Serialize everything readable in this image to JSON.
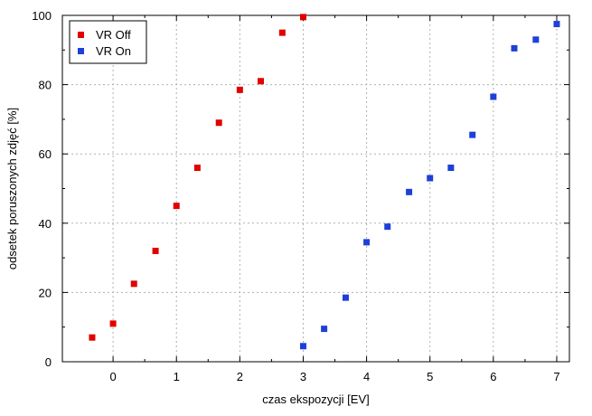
{
  "chart_data": {
    "type": "scatter",
    "title": "",
    "xlabel": "czas ekspozycji [EV]",
    "ylabel": "odsetek poruszonych zdjęć [%]",
    "xlim": [
      -0.8,
      7.2
    ],
    "ylim": [
      0,
      100
    ],
    "x_ticks": [
      0,
      1,
      2,
      3,
      4,
      5,
      6,
      7
    ],
    "y_ticks": [
      0,
      20,
      40,
      60,
      80,
      100
    ],
    "x_tick_labels": [
      "0",
      "1",
      "2",
      "3",
      "4",
      "5",
      "6",
      "7"
    ],
    "y_tick_labels": [
      "0",
      "20",
      "40",
      "60",
      "80",
      "100"
    ],
    "grid": true,
    "legend_position": "top-left",
    "series": [
      {
        "name": "VR Off",
        "color": "#e00000",
        "marker": "square",
        "x": [
          -0.33,
          0,
          0.33,
          0.67,
          1,
          1.33,
          1.67,
          2,
          2.33,
          2.67,
          3
        ],
        "y": [
          7,
          11,
          22.5,
          32,
          45,
          56,
          69,
          78.5,
          81,
          95,
          99.5
        ]
      },
      {
        "name": "VR On",
        "color": "#1e40d8",
        "marker": "square",
        "x": [
          3,
          3.33,
          3.67,
          4,
          4.33,
          4.67,
          5,
          5.33,
          5.67,
          6,
          6.33,
          6.67,
          7
        ],
        "y": [
          4.5,
          9.5,
          18.5,
          34.5,
          39,
          49,
          53,
          56,
          65.5,
          76.5,
          90.5,
          93,
          97.5
        ]
      }
    ]
  }
}
